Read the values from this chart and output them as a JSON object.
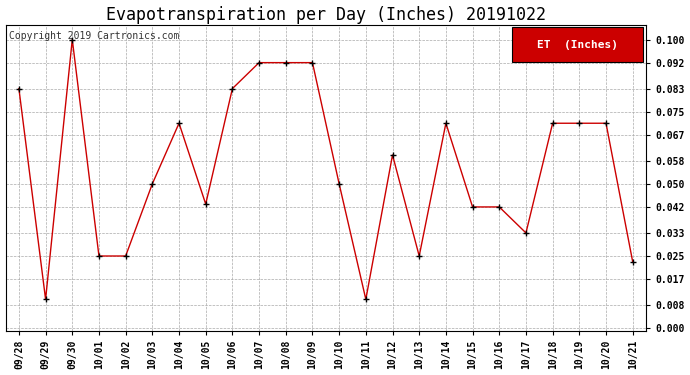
{
  "title": "Evapotranspiration per Day (Inches) 20191022",
  "copyright": "Copyright 2019 Cartronics.com",
  "legend_label": "ET  (Inches)",
  "legend_bg": "#cc0000",
  "legend_text_color": "#ffffff",
  "x_labels": [
    "09/28",
    "09/29",
    "09/30",
    "10/01",
    "10/02",
    "10/03",
    "10/04",
    "10/05",
    "10/06",
    "10/07",
    "10/08",
    "10/09",
    "10/10",
    "10/11",
    "10/12",
    "10/13",
    "10/14",
    "10/15",
    "10/16",
    "10/17",
    "10/18",
    "10/19",
    "10/20",
    "10/21"
  ],
  "y_values": [
    0.083,
    0.01,
    0.1,
    0.025,
    0.025,
    0.05,
    0.071,
    0.043,
    0.083,
    0.092,
    0.092,
    0.092,
    0.05,
    0.01,
    0.06,
    0.025,
    0.071,
    0.042,
    0.042,
    0.033,
    0.071,
    0.071,
    0.071,
    0.023
  ],
  "line_color": "#cc0000",
  "marker_color": "#000000",
  "bg_color": "#ffffff",
  "grid_color": "#aaaaaa",
  "y_ticks": [
    0.0,
    0.008,
    0.017,
    0.025,
    0.033,
    0.042,
    0.05,
    0.058,
    0.067,
    0.075,
    0.083,
    0.092,
    0.1
  ],
  "ylim": [
    -0.001,
    0.105
  ],
  "title_fontsize": 12,
  "copyright_fontsize": 7,
  "tick_fontsize": 7,
  "legend_fontsize": 8
}
